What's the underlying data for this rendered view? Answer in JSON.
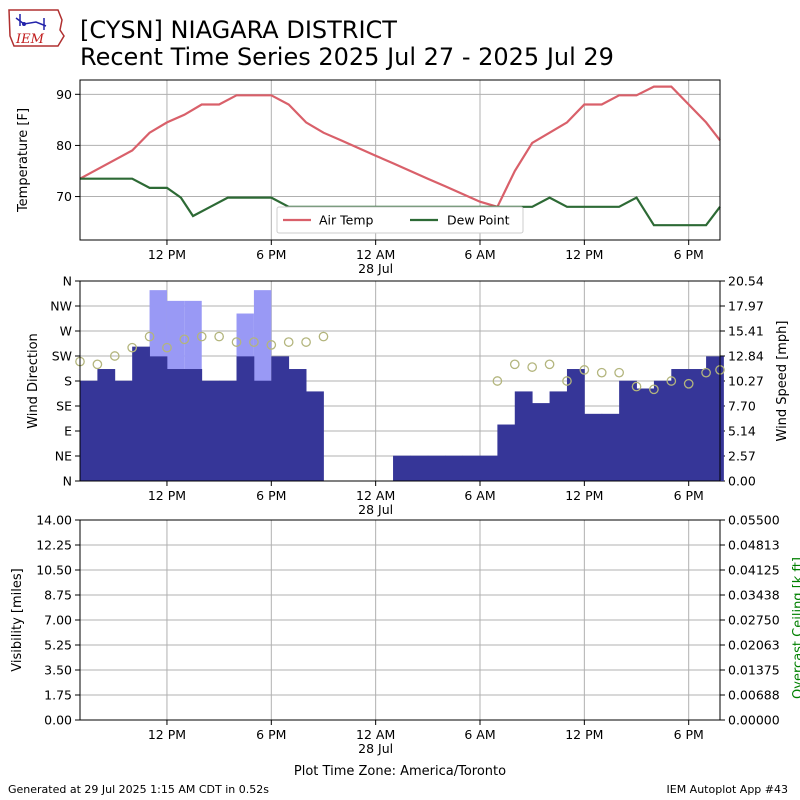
{
  "title": {
    "line1": "[CYSN] NIAGARA DISTRICT",
    "line2": "Recent Time Series 2025 Jul 27 - 2025 Jul 29"
  },
  "logo": {
    "text": "IEM"
  },
  "footer": {
    "left": "Generated at 29 Jul 2025 1:15 AM CDT in 0.52s",
    "right": "IEM Autoplot App #43"
  },
  "x_axis": {
    "timezone_label": "Plot Time Zone: America/Toronto",
    "ticks": [
      {
        "hour": 12,
        "label": "12 PM",
        "sub": ""
      },
      {
        "hour": 18,
        "label": "6 PM",
        "sub": ""
      },
      {
        "hour": 24,
        "label": "12 AM",
        "sub": "28 Jul"
      },
      {
        "hour": 30,
        "label": "6 AM",
        "sub": ""
      },
      {
        "hour": 36,
        "label": "12 PM",
        "sub": ""
      },
      {
        "hour": 42,
        "label": "6 PM",
        "sub": ""
      }
    ]
  },
  "colors": {
    "air_temp": "#d9606a",
    "dew_point": "#2d6a35",
    "wind_speed": "#363698",
    "wind_gust": "#9999f5",
    "wind_dir": "#b3b57d",
    "ceiling_label": "#008000"
  },
  "chart_data": [
    {
      "type": "line",
      "ylabel": "Temperature [F]",
      "xlim": [
        7,
        43.8
      ],
      "ylim": [
        61.5,
        92.8
      ],
      "yticks": [
        70,
        80,
        90
      ],
      "grid": true,
      "legend_position": "lower-center",
      "series": [
        {
          "name": "Air Temp",
          "x": [
            7,
            10,
            11,
            12,
            13,
            14,
            15,
            16,
            17,
            18,
            19,
            20,
            21,
            22,
            23,
            24,
            25,
            26,
            27,
            28,
            29,
            30,
            31,
            32,
            33,
            34,
            35,
            36,
            37,
            38,
            39,
            40,
            41,
            42,
            43,
            43.8
          ],
          "values": [
            73.5,
            79,
            82.5,
            84.5,
            86,
            88,
            88,
            89.8,
            89.8,
            89.8,
            88,
            84.5,
            82.5,
            81,
            79.5,
            78,
            76.5,
            75,
            73.5,
            72,
            70.5,
            69,
            68,
            75,
            80.5,
            82.5,
            84.5,
            88,
            88,
            89.8,
            89.8,
            91.5,
            91.5,
            88,
            84.5,
            81
          ]
        },
        {
          "name": "Dew Point",
          "x": [
            7,
            10,
            11,
            12,
            12.8,
            13.5,
            14.5,
            15.5,
            17,
            18,
            19,
            20,
            26,
            32,
            33,
            34,
            35,
            36,
            37,
            38,
            39,
            40,
            41,
            42,
            43,
            43.8
          ],
          "values": [
            73.5,
            73.5,
            71.7,
            71.7,
            69.8,
            66.2,
            68,
            69.8,
            69.8,
            69.8,
            68,
            68,
            68,
            68,
            68,
            69.8,
            68,
            68,
            68,
            68,
            69.8,
            64.4,
            64.4,
            64.4,
            64.4,
            68
          ]
        }
      ]
    },
    {
      "type": "bar",
      "ylabel": "Wind Direction",
      "y2label": "Wind Speed [mph]",
      "xlim": [
        7,
        43.8
      ],
      "y_dir_ticks": [
        "N",
        "NE",
        "E",
        "SE",
        "S",
        "SW",
        "W",
        "NW",
        "N"
      ],
      "y_speed_ticks": [
        "0.00",
        "2.57",
        "5.14",
        "7.70",
        "10.27",
        "12.84",
        "15.41",
        "17.97",
        "20.54"
      ],
      "speed_lim": [
        0,
        20.54
      ],
      "grid": true,
      "speed": {
        "x": [
          7.5,
          8.5,
          9.5,
          10.5,
          11.5,
          12.5,
          13.5,
          14.5,
          15.5,
          16.5,
          17.5,
          18.5,
          19.5,
          20.5,
          21.5,
          22.5,
          23.5,
          24.5,
          25.5,
          26.5,
          27.5,
          28.5,
          29.5,
          30.5,
          31.5,
          32.5,
          33.5,
          34.5,
          35.5,
          36.5,
          37.5,
          38.5,
          39.5,
          40.5,
          41.5,
          42.5,
          43.5
        ],
        "values": [
          10.3,
          11.5,
          10.3,
          13.8,
          12.8,
          11.5,
          11.5,
          10.3,
          10.3,
          12.8,
          10.3,
          12.8,
          11.5,
          9.2,
          0,
          0,
          0,
          0,
          2.6,
          2.6,
          2.6,
          2.6,
          2.6,
          2.6,
          5.8,
          9.2,
          8.0,
          9.2,
          11.5,
          6.9,
          6.9,
          10.3,
          9.5,
          10.3,
          11.5,
          11.5,
          12.8
        ]
      },
      "gust": {
        "x": [
          11.5,
          12.5,
          13.5,
          16.5,
          17.5
        ],
        "values": [
          19.6,
          18.5,
          18.5,
          17.2,
          19.6
        ]
      },
      "direction_deg": {
        "x": [
          7,
          8,
          9,
          10,
          11,
          12,
          13,
          14,
          15,
          16,
          17,
          18,
          19,
          20,
          21,
          31,
          32,
          33,
          34,
          35,
          36,
          37,
          38,
          39,
          40,
          41,
          42,
          43,
          43.8
        ],
        "values": [
          215,
          210,
          225,
          240,
          260,
          240,
          255,
          260,
          260,
          250,
          250,
          245,
          250,
          250,
          260,
          180,
          210,
          205,
          210,
          180,
          200,
          195,
          195,
          170,
          165,
          180,
          175,
          195,
          200
        ]
      }
    },
    {
      "type": "line",
      "ylabel": "Visibility [miles]",
      "y2label": "Overcast Ceiling [k ft]",
      "xlim": [
        7,
        43.8
      ],
      "yticks": [
        "0.00",
        "1.75",
        "3.50",
        "5.25",
        "7.00",
        "8.75",
        "10.50",
        "12.25",
        "14.00"
      ],
      "y2ticks": [
        "0.00000",
        "0.00688",
        "0.01375",
        "0.02063",
        "0.02750",
        "0.03438",
        "0.04125",
        "0.04813",
        "0.05500"
      ],
      "grid": true,
      "series": []
    }
  ]
}
